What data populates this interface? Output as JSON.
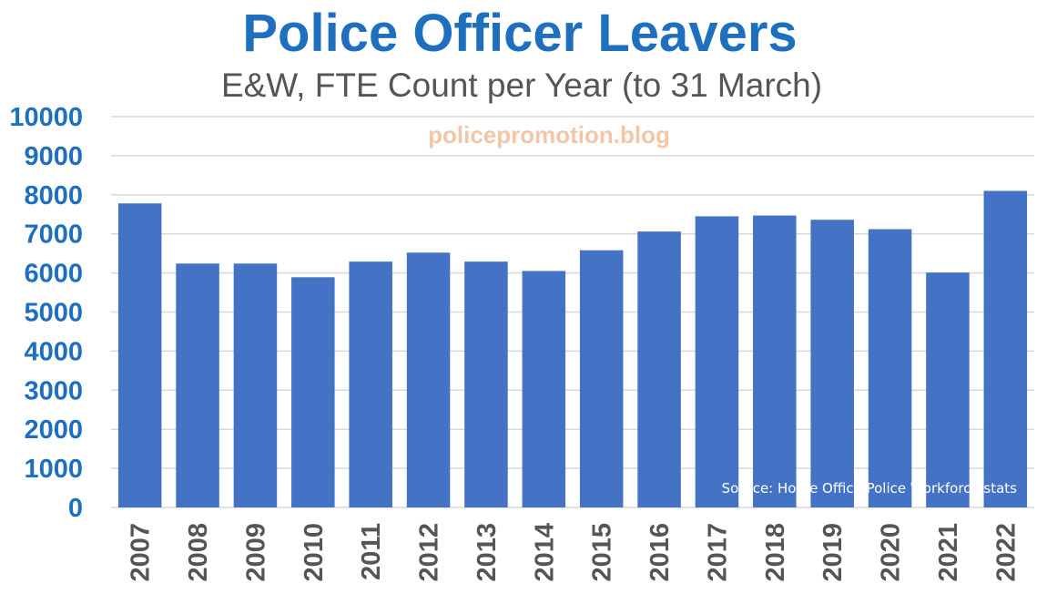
{
  "chart_data": {
    "type": "bar",
    "title": "Police Officer Leavers",
    "subtitle": "E&W, FTE Count per Year (to 31 March)",
    "watermark": "policepromotion.blog",
    "source": "Source: Home Office Police Workforce stats",
    "categories": [
      "2007",
      "2008",
      "2009",
      "2010",
      "2011",
      "2012",
      "2013",
      "2014",
      "2015",
      "2016",
      "2017",
      "2018",
      "2019",
      "2020",
      "2021",
      "2022"
    ],
    "values": [
      7780,
      6240,
      6240,
      5890,
      6290,
      6520,
      6290,
      6050,
      6580,
      7060,
      7450,
      7470,
      7360,
      7120,
      6010,
      8100
    ],
    "ylim": [
      0,
      10000
    ],
    "yticks": [
      0,
      1000,
      2000,
      3000,
      4000,
      5000,
      6000,
      7000,
      8000,
      9000,
      10000
    ],
    "grid": true,
    "bar_color": "#4472c4",
    "accent_color": "#1f6fbf"
  }
}
